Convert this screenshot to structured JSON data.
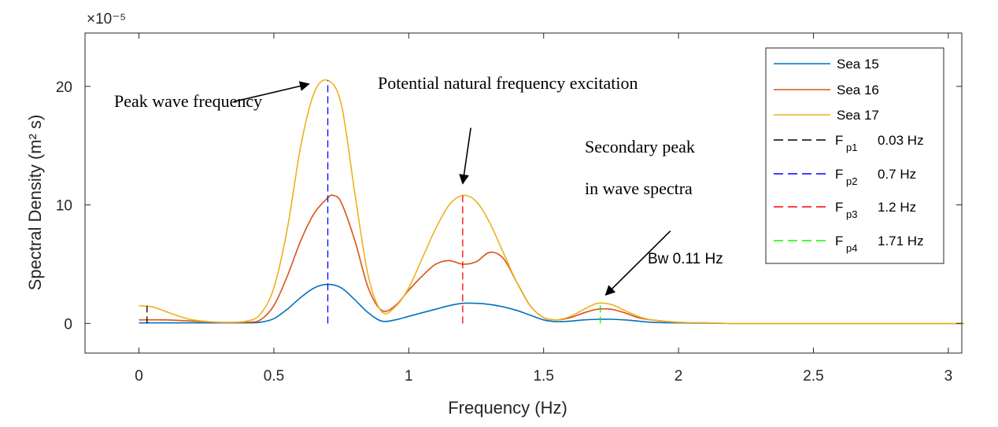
{
  "chart_data": {
    "type": "line",
    "title": "",
    "xlabel": "Frequency (Hz)",
    "ylabel": "Spectral Density (m² s)",
    "y_multiplier": "×10⁻⁵",
    "xlim": [
      -0.2,
      3.05
    ],
    "ylim": [
      -2.5,
      24.5
    ],
    "xticks": [
      0,
      0.5,
      1,
      1.5,
      2,
      2.5,
      3
    ],
    "xtick_labels": [
      "0",
      "0.5",
      "1",
      "1.5",
      "2",
      "2.5",
      "3"
    ],
    "yticks": [
      0,
      10,
      20
    ],
    "ytick_labels": [
      "0",
      "10",
      "20"
    ],
    "grid": false,
    "legend_position": "top-right",
    "series": [
      {
        "name": "Sea 15",
        "color": "#0072BD",
        "x": [
          0,
          0.1,
          0.2,
          0.3,
          0.4,
          0.45,
          0.5,
          0.55,
          0.6,
          0.65,
          0.7,
          0.75,
          0.8,
          0.85,
          0.9,
          0.95,
          1.0,
          1.05,
          1.1,
          1.15,
          1.2,
          1.25,
          1.3,
          1.35,
          1.4,
          1.45,
          1.5,
          1.55,
          1.6,
          1.65,
          1.7,
          1.75,
          1.8,
          1.85,
          1.9,
          2.0,
          2.1,
          2.2,
          2.5,
          3.0,
          3.05
        ],
        "y": [
          0.05,
          0.05,
          0.05,
          0.05,
          0.05,
          0.1,
          0.4,
          1.2,
          2.2,
          3.0,
          3.3,
          3.0,
          2.0,
          0.9,
          0.2,
          0.3,
          0.6,
          0.9,
          1.2,
          1.5,
          1.7,
          1.7,
          1.6,
          1.4,
          1.1,
          0.7,
          0.3,
          0.15,
          0.2,
          0.3,
          0.35,
          0.35,
          0.3,
          0.2,
          0.1,
          0.05,
          0.02,
          0,
          0,
          0,
          0
        ]
      },
      {
        "name": "Sea 16",
        "color": "#D95319",
        "x": [
          0,
          0.1,
          0.2,
          0.3,
          0.4,
          0.45,
          0.5,
          0.55,
          0.6,
          0.65,
          0.7,
          0.72,
          0.75,
          0.8,
          0.85,
          0.9,
          0.95,
          1.0,
          1.05,
          1.1,
          1.15,
          1.2,
          1.25,
          1.3,
          1.35,
          1.4,
          1.45,
          1.5,
          1.55,
          1.6,
          1.65,
          1.7,
          1.75,
          1.8,
          1.85,
          1.9,
          2.0,
          2.1,
          2.2,
          2.5,
          3.0,
          3.05
        ],
        "y": [
          0.3,
          0.3,
          0.2,
          0.1,
          0.1,
          0.3,
          1.5,
          4.0,
          7.0,
          9.3,
          10.6,
          10.8,
          10.2,
          7.0,
          3.0,
          1.1,
          1.5,
          2.8,
          4.0,
          5.0,
          5.3,
          5.0,
          5.2,
          6.0,
          5.5,
          3.5,
          1.5,
          0.5,
          0.3,
          0.5,
          0.9,
          1.2,
          1.2,
          0.9,
          0.5,
          0.3,
          0.1,
          0.05,
          0,
          0,
          0,
          0
        ]
      },
      {
        "name": "Sea 17",
        "color": "#EDB120",
        "x": [
          0,
          0.05,
          0.1,
          0.15,
          0.2,
          0.3,
          0.4,
          0.45,
          0.5,
          0.55,
          0.6,
          0.65,
          0.7,
          0.75,
          0.8,
          0.85,
          0.9,
          0.95,
          1.0,
          1.05,
          1.1,
          1.15,
          1.2,
          1.25,
          1.3,
          1.35,
          1.4,
          1.45,
          1.5,
          1.55,
          1.6,
          1.65,
          1.7,
          1.75,
          1.8,
          1.85,
          1.9,
          2.0,
          2.1,
          2.2,
          2.5,
          3.0,
          3.05
        ],
        "y": [
          1.5,
          1.4,
          1.0,
          0.6,
          0.3,
          0.1,
          0.2,
          0.8,
          3.0,
          8.0,
          15.0,
          19.5,
          20.5,
          18.5,
          11.0,
          4.0,
          1.0,
          1.4,
          3.0,
          5.5,
          8.0,
          10.0,
          10.8,
          10.3,
          8.5,
          6.0,
          3.5,
          1.5,
          0.5,
          0.3,
          0.6,
          1.2,
          1.7,
          1.6,
          1.1,
          0.6,
          0.3,
          0.1,
          0.05,
          0,
          0,
          0,
          0
        ]
      }
    ],
    "peak_markers": [
      {
        "name": "F_p1",
        "label_main": "F",
        "label_sub": "p1",
        "value_text": "0.03 Hz",
        "x": 0.03,
        "y_top": 1.5,
        "color": "#000000"
      },
      {
        "name": "F_p2",
        "label_main": "F",
        "label_sub": "p2",
        "value_text": "0.7 Hz",
        "x": 0.7,
        "y_top": 20.5,
        "color": "#0000FF"
      },
      {
        "name": "F_p3",
        "label_main": "F",
        "label_sub": "p3",
        "value_text": "1.2 Hz",
        "x": 1.2,
        "y_top": 10.8,
        "color": "#FF0000"
      },
      {
        "name": "F_p4",
        "label_main": "F",
        "label_sub": "p4",
        "value_text": "1.71 Hz",
        "x": 1.71,
        "y_top": 1.7,
        "color": "#00FF00"
      }
    ],
    "annotations": [
      {
        "text": "Peak wave frequency",
        "ax": 0.35,
        "ay": 18.7,
        "tx": 0.63,
        "ty": 20.2
      },
      {
        "text": "Potential natural frequency excitation",
        "ax": 1.23,
        "ay": 16.5,
        "tx": 1.2,
        "ty": 11.8
      },
      {
        "text": "Secondary  peak",
        "ax": null,
        "ay": null,
        "tx": null,
        "ty": null
      },
      {
        "text": "in wave spectra",
        "ax": null,
        "ay": null,
        "tx": null,
        "ty": null
      },
      {
        "text": "Bw 0.11 Hz",
        "ax": 1.97,
        "ay": 7.8,
        "tx": 1.73,
        "ty": 2.4
      }
    ]
  }
}
